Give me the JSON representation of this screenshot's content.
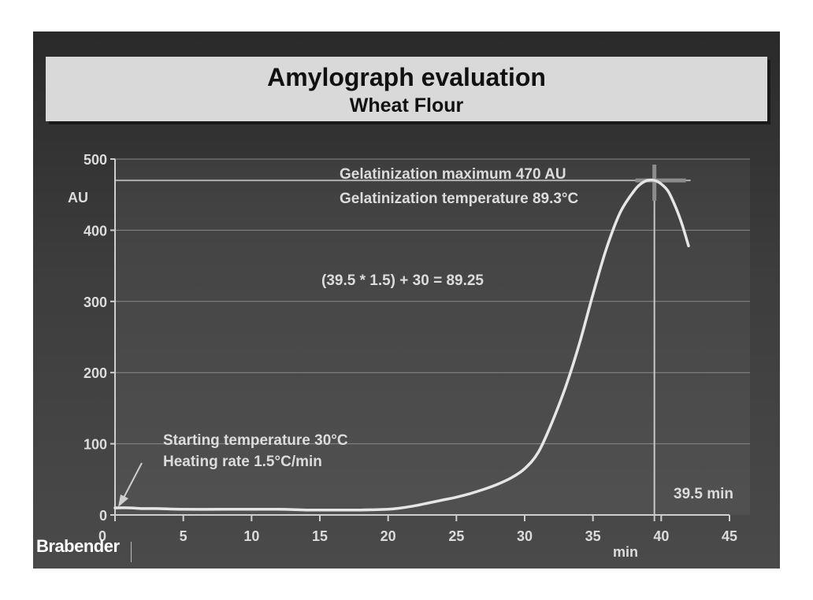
{
  "title": "Amylograph evaluation",
  "subtitle": "Wheat Flour",
  "logo_text": "Brabender",
  "colors": {
    "background": "#333333",
    "title_box": "#d9d9d9",
    "curve": "#e6e6e6",
    "text": "#dcdcdc",
    "max_marker": "#8c8c8c"
  },
  "chart_data": {
    "type": "line",
    "title": "Amylograph evaluation",
    "subtitle": "Wheat Flour",
    "xlabel": "min",
    "ylabel": "AU",
    "xlim": [
      0,
      45
    ],
    "ylim": [
      0,
      500
    ],
    "xticks": [
      0,
      5,
      10,
      15,
      20,
      25,
      30,
      35,
      40,
      45
    ],
    "yticks": [
      0,
      100,
      200,
      300,
      400,
      500
    ],
    "grid": true,
    "series": [
      {
        "x": [
          0,
          1,
          2,
          3,
          5,
          8,
          10,
          12,
          14,
          16,
          18,
          20,
          21,
          22,
          23,
          24,
          25,
          26,
          27,
          28,
          29,
          30,
          31,
          32,
          33,
          34,
          35,
          36,
          37,
          38,
          38.5,
          39,
          39.5,
          40,
          40.5,
          41,
          41.5,
          42
        ],
        "y": [
          10,
          10,
          9,
          9,
          8,
          8,
          8,
          8,
          7,
          7,
          7,
          8,
          10,
          13,
          17,
          21,
          25,
          30,
          36,
          43,
          52,
          65,
          88,
          130,
          180,
          240,
          310,
          375,
          425,
          455,
          465,
          470,
          470,
          465,
          455,
          435,
          410,
          378
        ]
      }
    ],
    "annotations": [
      "Gelatinization maximum 470 AU",
      "Gelatinization temperature 89.3°C",
      "(39.5 * 1.5) + 30 = 89.25",
      "Starting temperature 30°C",
      "Heating rate 1.5°C/min",
      "39.5 min"
    ],
    "max_point": {
      "x": 39.5,
      "y": 470
    }
  }
}
